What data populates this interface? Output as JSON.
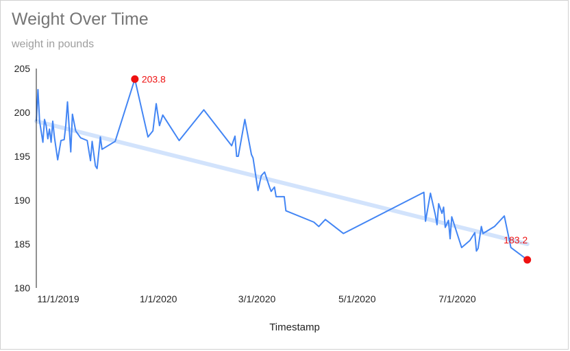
{
  "title": "Weight Over Time",
  "subtitle": "weight in pounds",
  "colors": {
    "series": "#4285f4",
    "trendline": "#d2e3fc",
    "highlight": "#ee1111",
    "title": "#757575",
    "subtitle": "#9e9e9e"
  },
  "chart_data": {
    "type": "line",
    "title": "Weight Over Time",
    "subtitle": "weight in pounds",
    "xlabel": "Timestamp",
    "ylabel": "",
    "x_type": "date",
    "xlim": [
      "2019-11-01",
      "2020-09-15"
    ],
    "ylim": [
      180,
      205
    ],
    "yticks": [
      180,
      185,
      190,
      195,
      200,
      205
    ],
    "xticks": [
      {
        "date": "2019-11-01",
        "label": "11/1/2019"
      },
      {
        "date": "2020-01-01",
        "label": "1/1/2020"
      },
      {
        "date": "2020-03-01",
        "label": "3/1/2020"
      },
      {
        "date": "2020-05-01",
        "label": "5/1/2020"
      },
      {
        "date": "2020-07-01",
        "label": "7/1/2020"
      }
    ],
    "grid": false,
    "legend": "none",
    "series": [
      {
        "points": [
          [
            "2019-11-01",
            199.0
          ],
          [
            "2019-11-02",
            202.6
          ],
          [
            "2019-11-03",
            199.0
          ],
          [
            "2019-11-05",
            196.6
          ],
          [
            "2019-11-06",
            199.2
          ],
          [
            "2019-11-07",
            198.5
          ],
          [
            "2019-11-08",
            197.0
          ],
          [
            "2019-11-09",
            198.1
          ],
          [
            "2019-11-10",
            196.6
          ],
          [
            "2019-11-11",
            199.0
          ],
          [
            "2019-11-12",
            197.2
          ],
          [
            "2019-11-14",
            194.6
          ],
          [
            "2019-11-16",
            196.8
          ],
          [
            "2019-11-18",
            196.9
          ],
          [
            "2019-11-19",
            198.6
          ],
          [
            "2019-11-20",
            201.2
          ],
          [
            "2019-11-22",
            195.5
          ],
          [
            "2019-11-23",
            199.8
          ],
          [
            "2019-11-25",
            197.9
          ],
          [
            "2019-11-28",
            197.1
          ],
          [
            "2019-12-02",
            196.8
          ],
          [
            "2019-12-04",
            194.5
          ],
          [
            "2019-12-05",
            196.7
          ],
          [
            "2019-12-07",
            193.9
          ],
          [
            "2019-12-08",
            193.6
          ],
          [
            "2019-12-10",
            197.2
          ],
          [
            "2019-12-11",
            195.8
          ],
          [
            "2019-12-19",
            196.7
          ],
          [
            "2019-12-31",
            203.8
          ],
          [
            "2020-01-08",
            197.2
          ],
          [
            "2020-01-11",
            197.9
          ],
          [
            "2020-01-13",
            201.0
          ],
          [
            "2020-01-15",
            198.5
          ],
          [
            "2020-01-17",
            199.7
          ],
          [
            "2020-01-27",
            196.8
          ],
          [
            "2020-02-11",
            200.3
          ],
          [
            "2020-02-28",
            196.2
          ],
          [
            "2020-03-01",
            197.3
          ],
          [
            "2020-03-02",
            195.0
          ],
          [
            "2020-03-03",
            195.0
          ],
          [
            "2020-03-07",
            199.2
          ],
          [
            "2020-03-11",
            195.2
          ],
          [
            "2020-03-12",
            194.8
          ],
          [
            "2020-03-15",
            191.1
          ],
          [
            "2020-03-17",
            192.8
          ],
          [
            "2020-03-19",
            193.2
          ],
          [
            "2020-03-22",
            191.5
          ],
          [
            "2020-03-23",
            191.0
          ],
          [
            "2020-03-25",
            191.5
          ],
          [
            "2020-03-26",
            190.4
          ],
          [
            "2020-03-31",
            190.4
          ],
          [
            "2020-04-01",
            188.8
          ],
          [
            "2020-04-18",
            187.5
          ],
          [
            "2020-04-21",
            187.0
          ],
          [
            "2020-04-25",
            187.8
          ],
          [
            "2020-05-06",
            186.2
          ],
          [
            "2020-06-24",
            190.9
          ],
          [
            "2020-06-25",
            187.6
          ],
          [
            "2020-06-28",
            190.8
          ],
          [
            "2020-07-01",
            188.3
          ],
          [
            "2020-07-02",
            187.2
          ],
          [
            "2020-07-03",
            189.6
          ],
          [
            "2020-07-05",
            188.5
          ],
          [
            "2020-07-06",
            189.2
          ],
          [
            "2020-07-07",
            186.9
          ],
          [
            "2020-07-09",
            187.7
          ],
          [
            "2020-07-10",
            185.6
          ],
          [
            "2020-07-11",
            188.1
          ],
          [
            "2020-07-17",
            184.6
          ],
          [
            "2020-07-22",
            185.4
          ],
          [
            "2020-07-25",
            186.3
          ],
          [
            "2020-07-26",
            184.2
          ],
          [
            "2020-07-27",
            184.5
          ],
          [
            "2020-07-29",
            187.0
          ],
          [
            "2020-07-30",
            186.2
          ],
          [
            "2020-08-06",
            187.0
          ],
          [
            "2020-08-12",
            188.2
          ],
          [
            "2020-08-16",
            184.6
          ],
          [
            "2020-08-26",
            183.2
          ]
        ]
      }
    ],
    "trendline": {
      "start": [
        "2019-11-01",
        199.0
      ],
      "end": [
        "2020-08-26",
        185.0
      ]
    },
    "annotations": [
      {
        "x": "2019-12-31",
        "y": 203.8,
        "label": "203.8"
      },
      {
        "x": "2020-08-26",
        "y": 183.2,
        "label": "183.2"
      }
    ]
  }
}
